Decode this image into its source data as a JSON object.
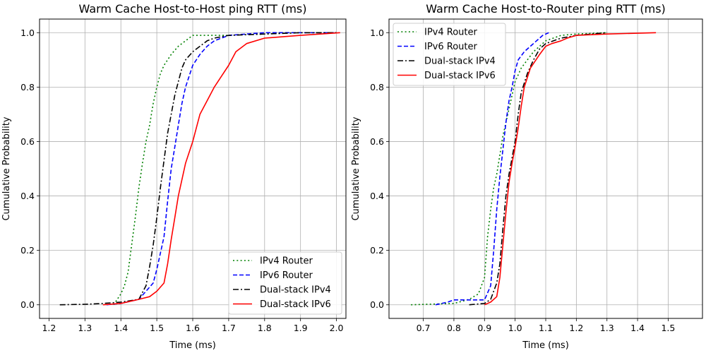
{
  "chart_data": [
    {
      "type": "line",
      "title": "Warm Cache Host-to-Host ping RTT (ms)",
      "xlabel": "Time (ms)",
      "ylabel": "Cumulative Probability",
      "xlim": [
        1.2,
        2.0
      ],
      "ylim": [
        0.0,
        1.0
      ],
      "xticks": [
        "1.2",
        "1.3",
        "1.4",
        "1.5",
        "1.6",
        "1.7",
        "1.8",
        "1.9",
        "2.0"
      ],
      "yticks": [
        "0.0",
        "0.2",
        "0.4",
        "0.6",
        "0.8",
        "1.0"
      ],
      "grid": true,
      "legend_position": "lower-right",
      "series": [
        {
          "name": "IPv4 Router",
          "color": "#008000",
          "style": "dotted",
          "x": [
            1.38,
            1.4,
            1.41,
            1.42,
            1.43,
            1.44,
            1.45,
            1.46,
            1.47,
            1.48,
            1.49,
            1.5,
            1.51,
            1.52,
            1.54,
            1.56,
            1.58,
            1.6,
            1.65,
            1.7,
            1.8,
            1.9,
            2.0
          ],
          "y": [
            0.0,
            0.04,
            0.07,
            0.12,
            0.22,
            0.32,
            0.43,
            0.52,
            0.6,
            0.66,
            0.74,
            0.8,
            0.85,
            0.88,
            0.92,
            0.95,
            0.97,
            0.99,
            0.99,
            0.99,
            0.995,
            1.0,
            1.0
          ]
        },
        {
          "name": "IPv6 Router",
          "color": "#0000ff",
          "style": "dashed",
          "x": [
            1.36,
            1.4,
            1.45,
            1.47,
            1.49,
            1.5,
            1.52,
            1.53,
            1.54,
            1.55,
            1.56,
            1.57,
            1.58,
            1.59,
            1.6,
            1.62,
            1.64,
            1.66,
            1.68,
            1.7,
            1.75,
            1.8,
            1.9,
            2.0
          ],
          "y": [
            0.0,
            0.005,
            0.02,
            0.05,
            0.08,
            0.13,
            0.25,
            0.38,
            0.5,
            0.58,
            0.66,
            0.74,
            0.8,
            0.84,
            0.88,
            0.92,
            0.95,
            0.97,
            0.98,
            0.99,
            0.995,
            1.0,
            1.0,
            1.0
          ]
        },
        {
          "name": "Dual-stack IPv4",
          "color": "#000000",
          "style": "dashdot",
          "x": [
            1.23,
            1.3,
            1.35,
            1.4,
            1.45,
            1.47,
            1.48,
            1.49,
            1.5,
            1.51,
            1.52,
            1.53,
            1.54,
            1.55,
            1.56,
            1.57,
            1.58,
            1.6,
            1.62,
            1.64,
            1.66,
            1.7,
            1.8,
            1.9,
            2.0
          ],
          "y": [
            0.0,
            0.002,
            0.005,
            0.01,
            0.02,
            0.07,
            0.14,
            0.22,
            0.32,
            0.43,
            0.53,
            0.63,
            0.7,
            0.77,
            0.82,
            0.87,
            0.9,
            0.93,
            0.95,
            0.97,
            0.98,
            0.99,
            0.995,
            1.0,
            1.0
          ]
        },
        {
          "name": "Dual-stack IPv6",
          "color": "#ff0000",
          "style": "solid",
          "x": [
            1.35,
            1.4,
            1.45,
            1.48,
            1.5,
            1.52,
            1.53,
            1.54,
            1.55,
            1.56,
            1.57,
            1.58,
            1.59,
            1.6,
            1.61,
            1.62,
            1.64,
            1.66,
            1.68,
            1.7,
            1.72,
            1.75,
            1.8,
            1.9,
            2.01
          ],
          "y": [
            0.0,
            0.005,
            0.02,
            0.03,
            0.05,
            0.08,
            0.15,
            0.24,
            0.32,
            0.4,
            0.46,
            0.52,
            0.56,
            0.6,
            0.65,
            0.7,
            0.75,
            0.8,
            0.84,
            0.88,
            0.93,
            0.96,
            0.98,
            0.99,
            1.0
          ]
        }
      ]
    },
    {
      "type": "line",
      "title": "Warm Cache Host-to-Router ping RTT (ms)",
      "xlabel": "Time (ms)",
      "ylabel": "Cumulative Probability",
      "xlim": [
        0.7,
        1.5
      ],
      "ylim": [
        0.0,
        1.0
      ],
      "xticks": [
        "0.7",
        "0.8",
        "0.9",
        "1.0",
        "1.1",
        "1.2",
        "1.3",
        "1.4",
        "1.5"
      ],
      "yticks": [
        "0.0",
        "0.2",
        "0.4",
        "0.6",
        "0.8",
        "1.0"
      ],
      "grid": true,
      "legend_position": "upper-left",
      "series": [
        {
          "name": "IPv4 Router",
          "color": "#008000",
          "style": "dotted",
          "x": [
            0.66,
            0.8,
            0.85,
            0.88,
            0.9,
            0.91,
            0.92,
            0.93,
            0.94,
            0.95,
            0.96,
            0.97,
            0.98,
            0.99,
            1.0,
            1.02,
            1.04,
            1.06,
            1.08,
            1.1,
            1.15,
            1.2,
            1.3
          ],
          "y": [
            0.0,
            0.005,
            0.02,
            0.04,
            0.1,
            0.25,
            0.35,
            0.43,
            0.48,
            0.55,
            0.62,
            0.67,
            0.72,
            0.77,
            0.82,
            0.87,
            0.9,
            0.93,
            0.95,
            0.97,
            0.99,
            0.995,
            1.0
          ]
        },
        {
          "name": "IPv6 Router",
          "color": "#0000ff",
          "style": "dashed",
          "x": [
            0.74,
            0.78,
            0.8,
            0.9,
            0.92,
            0.93,
            0.94,
            0.95,
            0.96,
            0.97,
            0.98,
            0.99,
            1.0,
            1.01,
            1.03,
            1.05,
            1.07,
            1.09,
            1.11
          ],
          "y": [
            0.0,
            0.01,
            0.018,
            0.018,
            0.07,
            0.2,
            0.35,
            0.47,
            0.57,
            0.67,
            0.75,
            0.8,
            0.86,
            0.9,
            0.93,
            0.95,
            0.97,
            0.99,
            1.0
          ]
        },
        {
          "name": "Dual-stack IPv4",
          "color": "#000000",
          "style": "dashdot",
          "x": [
            0.85,
            0.9,
            0.92,
            0.94,
            0.95,
            0.96,
            0.97,
            0.98,
            0.99,
            1.0,
            1.01,
            1.02,
            1.04,
            1.06,
            1.08,
            1.1,
            1.15,
            1.2,
            1.3
          ],
          "y": [
            0.0,
            0.005,
            0.02,
            0.08,
            0.15,
            0.28,
            0.4,
            0.48,
            0.54,
            0.6,
            0.7,
            0.78,
            0.85,
            0.9,
            0.94,
            0.96,
            0.98,
            0.99,
            1.0
          ]
        },
        {
          "name": "Dual-stack IPv6",
          "color": "#ff0000",
          "style": "solid",
          "x": [
            0.9,
            0.92,
            0.94,
            0.95,
            0.96,
            0.97,
            0.98,
            0.99,
            1.0,
            1.01,
            1.02,
            1.03,
            1.05,
            1.08,
            1.1,
            1.12,
            1.15,
            1.17,
            1.2,
            1.3,
            1.46
          ],
          "y": [
            0.0,
            0.01,
            0.03,
            0.1,
            0.22,
            0.34,
            0.45,
            0.52,
            0.58,
            0.65,
            0.73,
            0.8,
            0.87,
            0.92,
            0.95,
            0.96,
            0.97,
            0.98,
            0.99,
            0.995,
            1.0
          ]
        }
      ]
    }
  ]
}
